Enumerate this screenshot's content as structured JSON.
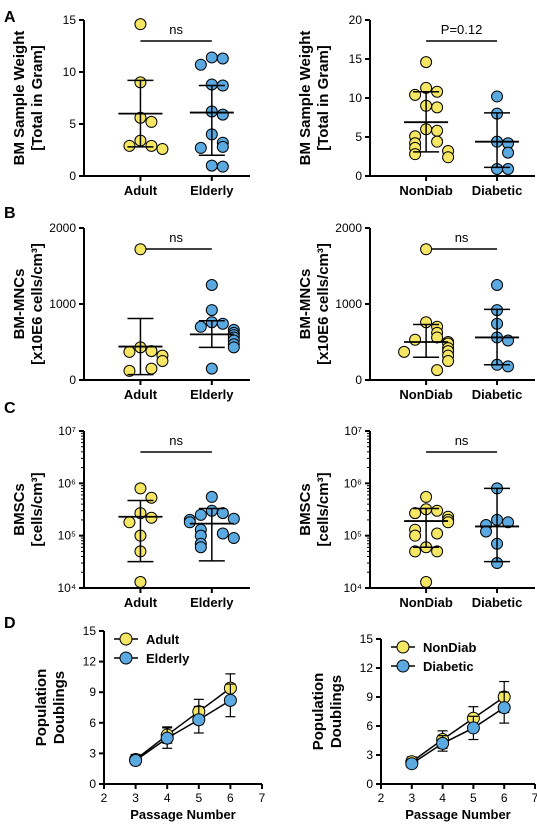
{
  "panel_letters": [
    "A",
    "B",
    "C",
    "D"
  ],
  "colors": {
    "yellow": "#f5e663",
    "blue": "#5aa9e0",
    "stroke": "#000000"
  },
  "chart_data": [
    {
      "id": "A1",
      "panel": "A",
      "type": "scatter",
      "ylabel": "BM Sample Weight",
      "ylabel2": "[Total in Gram]",
      "ylim": [
        0,
        15
      ],
      "yticks": [
        0,
        5,
        10,
        15
      ],
      "yticklabels": [
        "0",
        "5",
        "10",
        "15"
      ],
      "categories": [
        "Adult",
        "Elderly"
      ],
      "annotation": "ns",
      "groups": [
        {
          "name": "Adult",
          "color": "yellow",
          "mean": 6.0,
          "sd_low": 2.8,
          "sd_high": 9.2,
          "values": [
            14.6,
            9.0,
            5.6,
            5.2,
            3.4,
            2.9,
            2.9,
            2.6
          ]
        },
        {
          "name": "Elderly",
          "color": "blue",
          "mean": 6.1,
          "sd_low": 2.0,
          "sd_high": 8.7,
          "values": [
            11.4,
            11.3,
            10.7,
            8.8,
            8.7,
            6.2,
            5.9,
            4.0,
            3.2,
            2.8,
            2.7,
            1.0,
            0.9
          ]
        }
      ]
    },
    {
      "id": "A2",
      "panel": "A",
      "type": "scatter",
      "ylabel": "BM Sample Weight",
      "ylabel2": "[Total in Gram]",
      "ylim": [
        0,
        20
      ],
      "yticks": [
        0,
        5,
        10,
        15,
        20
      ],
      "yticklabels": [
        "0",
        "5",
        "10",
        "15",
        "20"
      ],
      "categories": [
        "NonDiab",
        "Diabetic"
      ],
      "annotation": "P=0.12",
      "groups": [
        {
          "name": "NonDiab",
          "color": "yellow",
          "mean": 6.9,
          "sd_low": 3.1,
          "sd_high": 10.8,
          "values": [
            14.6,
            11.3,
            10.8,
            10.4,
            9.0,
            8.8,
            6.0,
            5.8,
            5.1,
            4.4,
            4.2,
            3.6,
            3.2,
            2.8,
            2.4
          ]
        },
        {
          "name": "Diabetic",
          "color": "blue",
          "mean": 4.4,
          "sd_low": 1.1,
          "sd_high": 8.1,
          "values": [
            10.2,
            8.0,
            4.4,
            4.2,
            3.0,
            0.9,
            0.9
          ]
        }
      ]
    },
    {
      "id": "B1",
      "panel": "B",
      "type": "scatter",
      "ylabel": "BM-MNCs",
      "ylabel2": "[x10E6 cells/cm³]",
      "ylim": [
        0,
        2000
      ],
      "yticks": [
        0,
        1000,
        2000
      ],
      "yticklabels": [
        "0",
        "1000",
        "2000"
      ],
      "categories": [
        "Adult",
        "Elderly"
      ],
      "annotation": "ns",
      "groups": [
        {
          "name": "Adult",
          "color": "yellow",
          "mean": 440,
          "sd_low": 70,
          "sd_high": 810,
          "values": [
            1720,
            430,
            380,
            370,
            320,
            250,
            150,
            120
          ]
        },
        {
          "name": "Elderly",
          "color": "blue",
          "mean": 600,
          "sd_low": 430,
          "sd_high": 780,
          "values": [
            1250,
            920,
            760,
            740,
            700,
            660,
            620,
            590,
            560,
            520,
            470,
            430,
            150
          ]
        }
      ]
    },
    {
      "id": "B2",
      "panel": "B",
      "type": "scatter",
      "ylabel": "BM-MNCs",
      "ylabel2": "[x10E6 cells/cm³]",
      "ylim": [
        0,
        2000
      ],
      "yticks": [
        0,
        1000,
        2000
      ],
      "yticklabels": [
        "0",
        "1000",
        "2000"
      ],
      "categories": [
        "NonDiab",
        "Diabetic"
      ],
      "annotation": "ns",
      "groups": [
        {
          "name": "NonDiab",
          "color": "yellow",
          "mean": 500,
          "sd_low": 300,
          "sd_high": 730,
          "values": [
            1720,
            760,
            700,
            620,
            560,
            530,
            500,
            480,
            420,
            380,
            370,
            320,
            250,
            130
          ]
        },
        {
          "name": "Diabetic",
          "color": "blue",
          "mean": 560,
          "sd_low": 200,
          "sd_high": 930,
          "values": [
            1250,
            920,
            740,
            560,
            520,
            200,
            180
          ]
        }
      ]
    },
    {
      "id": "C1",
      "panel": "C",
      "type": "scatter",
      "scale": "log",
      "ylabel": "BMSCs",
      "ylabel2": "[cells/cm³]",
      "ylim": [
        10000,
        10000000
      ],
      "yticks": [
        10000,
        100000,
        1000000,
        10000000
      ],
      "yticklabels": [
        "10⁴",
        "10⁵",
        "10⁶",
        "10⁷"
      ],
      "categories": [
        "Adult",
        "Elderly"
      ],
      "annotation": "ns",
      "groups": [
        {
          "name": "Adult",
          "color": "yellow",
          "mean": 230000,
          "sd_low": 32000,
          "sd_high": 470000,
          "values": [
            800000,
            530000,
            270000,
            220000,
            180000,
            100000,
            50000,
            13000
          ]
        },
        {
          "name": "Elderly",
          "color": "blue",
          "mean": 170000,
          "sd_low": 33000,
          "sd_high": 330000,
          "values": [
            550000,
            300000,
            270000,
            250000,
            210000,
            200000,
            180000,
            130000,
            110000,
            100000,
            90000,
            70000,
            60000
          ]
        }
      ]
    },
    {
      "id": "C2",
      "panel": "C",
      "type": "scatter",
      "scale": "log",
      "ylabel": "BMSCs",
      "ylabel2": "[cells/cm³]",
      "ylim": [
        10000,
        10000000
      ],
      "yticks": [
        10000,
        100000,
        1000000,
        10000000
      ],
      "yticklabels": [
        "10⁴",
        "10⁵",
        "10⁶",
        "10⁷"
      ],
      "categories": [
        "NonDiab",
        "Diabetic"
      ],
      "annotation": "ns",
      "groups": [
        {
          "name": "NonDiab",
          "color": "yellow",
          "mean": 190000,
          "sd_low": 60000,
          "sd_high": 330000,
          "values": [
            550000,
            320000,
            300000,
            270000,
            230000,
            200000,
            180000,
            130000,
            110000,
            100000,
            60000,
            50000,
            50000,
            13000
          ]
        },
        {
          "name": "Diabetic",
          "color": "blue",
          "mean": 150000,
          "sd_low": 32000,
          "sd_high": 800000,
          "values": [
            800000,
            200000,
            180000,
            160000,
            120000,
            70000,
            30000
          ]
        }
      ]
    },
    {
      "id": "D1",
      "panel": "D",
      "type": "line",
      "ylabel": "Population",
      "ylabel2": "Doublings",
      "xlabel": "Passage Number",
      "xlim": [
        2,
        7
      ],
      "xticks": [
        2,
        3,
        4,
        5,
        6,
        7
      ],
      "ylim": [
        0,
        15
      ],
      "yticks": [
        0,
        3,
        6,
        9,
        12,
        15
      ],
      "legend": "top-left",
      "series": [
        {
          "name": "Adult",
          "color": "yellow",
          "x": [
            3,
            4,
            5,
            6
          ],
          "y": [
            2.4,
            4.8,
            7.1,
            9.4
          ],
          "err": [
            0.5,
            0.8,
            1.2,
            1.4
          ]
        },
        {
          "name": "Elderly",
          "color": "blue",
          "x": [
            3,
            4,
            5,
            6
          ],
          "y": [
            2.3,
            4.5,
            6.3,
            8.2
          ],
          "err": [
            0.4,
            1.0,
            1.3,
            1.6
          ]
        }
      ]
    },
    {
      "id": "D2",
      "panel": "D",
      "type": "line",
      "ylabel": "Population",
      "ylabel2": "Doublings",
      "xlabel": "Passage Number",
      "xlim": [
        2,
        7
      ],
      "xticks": [
        2,
        3,
        4,
        5,
        6,
        7
      ],
      "ylim": [
        0,
        15
      ],
      "yticks": [
        0,
        3,
        6,
        9,
        12,
        15
      ],
      "legend": "top-left",
      "series": [
        {
          "name": "NonDiab",
          "color": "yellow",
          "x": [
            3,
            4,
            5,
            6
          ],
          "y": [
            2.3,
            4.6,
            6.8,
            9.0
          ],
          "err": [
            0.5,
            0.9,
            1.2,
            1.6
          ]
        },
        {
          "name": "Diabetic",
          "color": "blue",
          "x": [
            3,
            4,
            5,
            6
          ],
          "y": [
            2.1,
            4.2,
            5.8,
            7.9
          ],
          "err": [
            0.4,
            0.8,
            1.2,
            1.6
          ]
        }
      ]
    }
  ]
}
